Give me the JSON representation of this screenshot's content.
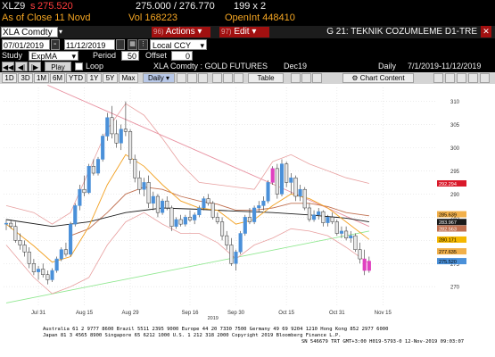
{
  "quote": {
    "ticker": "XLZ9",
    "arrow": "s",
    "last": "275.520",
    "bid_ask": "275.000 / 276.770",
    "size": "199 x 2"
  },
  "row2": {
    "as_of": "As of Close 11 Novd",
    "volume": "Vol  168223",
    "open_interest": "OpenInt  448410"
  },
  "security_bar": {
    "security": "XLA Comdty",
    "actions_num": "96)",
    "actions_label": "Actions",
    "edit_num": "97)",
    "edit_label": "Edit",
    "title": "G 21: TEKNIK COZUMLEME D1-TRE",
    "close_glyph": "✕"
  },
  "dates": {
    "start": "07/01/2019",
    "separator": "-",
    "end": "11/12/2019",
    "currency": "Local CCY"
  },
  "study": {
    "label": "Study",
    "value": "ExpMA",
    "period_label": "Period",
    "period_value": "50",
    "offset_label": "Offset",
    "offset_value": "0"
  },
  "play": {
    "play_label": "Play",
    "loop_label": "Loop",
    "chart_title": "XLA Comdty : GOLD FUTURES",
    "contract": "Dec19",
    "frequency": "Daily",
    "range": "7/1/2019-11/12/2019"
  },
  "toolbar": {
    "periods": [
      "1D",
      "3D",
      "1M",
      "6M",
      "YTD",
      "1Y",
      "5Y",
      "Max"
    ],
    "frequency": "Daily",
    "table": "Table",
    "chart_content": "Chart Content"
  },
  "chart_data": {
    "type": "candlestick",
    "title": "",
    "x_tick_labels": [
      "Jul 31",
      "Aug 15",
      "Aug 29",
      "Sep 16",
      "Sep 30",
      "Oct 15",
      "Oct 31",
      "Nov 15"
    ],
    "year_label": "2019",
    "ylim": [
      266,
      313
    ],
    "y_tick_values": [
      270,
      275,
      280,
      285,
      290,
      295,
      300,
      305,
      310
    ],
    "price_labels": [
      {
        "value": 292.294,
        "text": "292.294",
        "color": "#d9192a"
      },
      {
        "value": 285.639,
        "text": "285.639",
        "color": "#f2b04a"
      },
      {
        "value": 283.967,
        "text": "283.967",
        "color": "#1a1a1a"
      },
      {
        "value": 282.563,
        "text": "282.563",
        "color": "#c07050"
      },
      {
        "value": 280.171,
        "text": "280.171",
        "color": "#f5b800"
      },
      {
        "value": 277.635,
        "text": "277.635",
        "color": "#f2b04a"
      },
      {
        "value": 275.52,
        "text": "275.520",
        "color": "#4a90d9"
      }
    ],
    "colors": {
      "up": "#4a90d9",
      "down": "#e8e8e8",
      "extreme": "#e040c0",
      "down_border": "#333333",
      "ma_short": "#f2a020",
      "ma_long": "#1a1a1a",
      "ma_mid": "#c07050",
      "bollinger": "#e8a0a0",
      "trend_down": "#e890a0",
      "trend_up": "#90e890"
    },
    "candles": [
      {
        "x": 0,
        "o": 283.5,
        "h": 284.6,
        "l": 282.2,
        "c": 283.7
      },
      {
        "x": 1,
        "o": 283.7,
        "h": 284.5,
        "l": 282.5,
        "c": 283.0
      },
      {
        "x": 2,
        "o": 283.0,
        "h": 284.0,
        "l": 279.5,
        "c": 280.0
      },
      {
        "x": 3,
        "o": 280.0,
        "h": 281.5,
        "l": 278.0,
        "c": 279.0
      },
      {
        "x": 4,
        "o": 279.0,
        "h": 280.0,
        "l": 276.5,
        "c": 277.5
      },
      {
        "x": 5,
        "o": 277.5,
        "h": 278.5,
        "l": 274.0,
        "c": 275.0
      },
      {
        "x": 6,
        "o": 275.0,
        "h": 276.0,
        "l": 272.5,
        "c": 273.2
      },
      {
        "x": 7,
        "o": 273.2,
        "h": 274.5,
        "l": 271.5,
        "c": 273.8
      },
      {
        "x": 8,
        "o": 273.8,
        "h": 275.0,
        "l": 272.0,
        "c": 272.6
      },
      {
        "x": 9,
        "o": 272.6,
        "h": 273.5,
        "l": 270.5,
        "c": 271.5
      },
      {
        "x": 10,
        "o": 271.5,
        "h": 274.0,
        "l": 271.0,
        "c": 273.5
      },
      {
        "x": 11,
        "o": 273.5,
        "h": 276.5,
        "l": 273.0,
        "c": 276.0
      },
      {
        "x": 12,
        "o": 276.0,
        "h": 278.5,
        "l": 275.5,
        "c": 278.0
      },
      {
        "x": 13,
        "o": 278.0,
        "h": 279.5,
        "l": 276.5,
        "c": 277.0
      },
      {
        "x": 14,
        "o": 277.0,
        "h": 284.0,
        "l": 276.5,
        "c": 283.5
      },
      {
        "x": 15,
        "o": 283.5,
        "h": 288.0,
        "l": 283.0,
        "c": 287.5
      },
      {
        "x": 16,
        "o": 287.5,
        "h": 292.0,
        "l": 286.5,
        "c": 291.0
      },
      {
        "x": 17,
        "o": 291.0,
        "h": 294.0,
        "l": 289.5,
        "c": 290.3
      },
      {
        "x": 18,
        "o": 290.3,
        "h": 296.5,
        "l": 290.0,
        "c": 296.0
      },
      {
        "x": 19,
        "o": 296.0,
        "h": 297.5,
        "l": 294.0,
        "c": 294.5
      },
      {
        "x": 20,
        "o": 294.5,
        "h": 298.0,
        "l": 294.0,
        "c": 297.5
      },
      {
        "x": 21,
        "o": 297.5,
        "h": 303.0,
        "l": 297.0,
        "c": 302.5
      },
      {
        "x": 22,
        "o": 302.5,
        "h": 307.5,
        "l": 301.5,
        "c": 306.5
      },
      {
        "x": 23,
        "o": 306.5,
        "h": 309.0,
        "l": 302.0,
        "c": 303.0
      },
      {
        "x": 24,
        "o": 303.0,
        "h": 306.0,
        "l": 300.0,
        "c": 301.0
      },
      {
        "x": 25,
        "o": 301.0,
        "h": 305.0,
        "l": 299.5,
        "c": 304.0
      },
      {
        "x": 26,
        "o": 304.0,
        "h": 310.0,
        "l": 302.5,
        "c": 303.5
      },
      {
        "x": 27,
        "o": 303.5,
        "h": 304.0,
        "l": 296.5,
        "c": 297.5
      },
      {
        "x": 28,
        "o": 297.5,
        "h": 298.5,
        "l": 292.5,
        "c": 293.5
      },
      {
        "x": 29,
        "o": 293.5,
        "h": 295.0,
        "l": 290.0,
        "c": 291.0
      },
      {
        "x": 30,
        "o": 291.0,
        "h": 293.5,
        "l": 289.5,
        "c": 292.5
      },
      {
        "x": 31,
        "o": 292.5,
        "h": 294.0,
        "l": 287.0,
        "c": 288.0
      },
      {
        "x": 32,
        "o": 288.0,
        "h": 290.5,
        "l": 286.5,
        "c": 289.5
      },
      {
        "x": 33,
        "o": 289.5,
        "h": 290.0,
        "l": 285.0,
        "c": 286.0
      },
      {
        "x": 34,
        "o": 286.0,
        "h": 289.0,
        "l": 285.5,
        "c": 288.5
      },
      {
        "x": 35,
        "o": 288.5,
        "h": 289.5,
        "l": 286.5,
        "c": 287.0
      },
      {
        "x": 36,
        "o": 287.0,
        "h": 287.5,
        "l": 282.0,
        "c": 283.0
      },
      {
        "x": 37,
        "o": 283.0,
        "h": 285.0,
        "l": 282.5,
        "c": 284.5
      },
      {
        "x": 38,
        "o": 284.5,
        "h": 285.5,
        "l": 283.0,
        "c": 283.5
      },
      {
        "x": 39,
        "o": 283.5,
        "h": 285.5,
        "l": 283.0,
        "c": 285.0
      },
      {
        "x": 40,
        "o": 285.0,
        "h": 286.5,
        "l": 284.0,
        "c": 284.4
      },
      {
        "x": 41,
        "o": 284.4,
        "h": 286.0,
        "l": 283.5,
        "c": 285.5
      },
      {
        "x": 42,
        "o": 285.5,
        "h": 287.5,
        "l": 285.0,
        "c": 287.0
      },
      {
        "x": 43,
        "o": 287.0,
        "h": 289.5,
        "l": 286.5,
        "c": 289.0
      },
      {
        "x": 44,
        "o": 289.0,
        "h": 290.0,
        "l": 287.5,
        "c": 288.0
      },
      {
        "x": 45,
        "o": 288.0,
        "h": 288.5,
        "l": 284.5,
        "c": 285.0
      },
      {
        "x": 46,
        "o": 285.0,
        "h": 286.0,
        "l": 283.5,
        "c": 284.0
      },
      {
        "x": 47,
        "o": 284.0,
        "h": 285.0,
        "l": 280.0,
        "c": 281.0
      },
      {
        "x": 48,
        "o": 281.0,
        "h": 282.0,
        "l": 278.0,
        "c": 279.0
      },
      {
        "x": 49,
        "o": 279.0,
        "h": 280.5,
        "l": 274.5,
        "c": 275.0
      },
      {
        "x": 50,
        "o": 275.0,
        "h": 278.0,
        "l": 273.5,
        "c": 277.5
      },
      {
        "x": 51,
        "o": 277.5,
        "h": 282.0,
        "l": 277.0,
        "c": 281.5
      },
      {
        "x": 52,
        "o": 281.5,
        "h": 285.5,
        "l": 281.0,
        "c": 285.0
      },
      {
        "x": 53,
        "o": 285.0,
        "h": 287.0,
        "l": 283.5,
        "c": 284.0
      },
      {
        "x": 54,
        "o": 284.0,
        "h": 287.5,
        "l": 283.5,
        "c": 287.0
      },
      {
        "x": 55,
        "o": 287.0,
        "h": 288.5,
        "l": 286.0,
        "c": 287.5
      },
      {
        "x": 56,
        "o": 287.5,
        "h": 289.5,
        "l": 286.5,
        "c": 288.5
      },
      {
        "x": 57,
        "o": 288.5,
        "h": 293.0,
        "l": 288.0,
        "c": 292.5
      },
      {
        "x": 58,
        "o": 292.5,
        "h": 296.0,
        "l": 292.0,
        "c": 295.5
      },
      {
        "x": 59,
        "o": 295.5,
        "h": 296.5,
        "l": 289.0,
        "c": 290.0
      },
      {
        "x": 60,
        "o": 290.0,
        "h": 297.5,
        "l": 289.5,
        "c": 296.5
      },
      {
        "x": 61,
        "o": 296.5,
        "h": 297.0,
        "l": 291.5,
        "c": 292.5
      },
      {
        "x": 62,
        "o": 292.5,
        "h": 294.5,
        "l": 290.0,
        "c": 293.5
      },
      {
        "x": 63,
        "o": 293.5,
        "h": 294.0,
        "l": 288.5,
        "c": 289.5
      },
      {
        "x": 64,
        "o": 289.5,
        "h": 292.0,
        "l": 288.5,
        "c": 291.0
      },
      {
        "x": 65,
        "o": 291.0,
        "h": 291.5,
        "l": 286.5,
        "c": 287.0
      },
      {
        "x": 66,
        "o": 287.0,
        "h": 288.0,
        "l": 284.0,
        "c": 284.5
      },
      {
        "x": 67,
        "o": 284.5,
        "h": 286.5,
        "l": 284.0,
        "c": 285.5
      },
      {
        "x": 68,
        "o": 285.5,
        "h": 287.0,
        "l": 284.5,
        "c": 286.2
      },
      {
        "x": 69,
        "o": 286.2,
        "h": 286.5,
        "l": 283.0,
        "c": 283.8
      },
      {
        "x": 70,
        "o": 283.8,
        "h": 285.5,
        "l": 283.0,
        "c": 285.0
      },
      {
        "x": 71,
        "o": 285.0,
        "h": 286.0,
        "l": 283.5,
        "c": 284.0
      },
      {
        "x": 72,
        "o": 284.0,
        "h": 284.5,
        "l": 281.0,
        "c": 281.5
      },
      {
        "x": 73,
        "o": 281.5,
        "h": 283.0,
        "l": 280.5,
        "c": 282.0
      },
      {
        "x": 74,
        "o": 282.0,
        "h": 283.0,
        "l": 280.0,
        "c": 280.5
      },
      {
        "x": 75,
        "o": 280.5,
        "h": 282.0,
        "l": 279.5,
        "c": 281.0
      },
      {
        "x": 76,
        "o": 281.0,
        "h": 281.5,
        "l": 277.5,
        "c": 278.0
      },
      {
        "x": 77,
        "o": 278.0,
        "h": 279.5,
        "l": 275.0,
        "c": 276.0
      },
      {
        "x": 78,
        "o": 276.0,
        "h": 278.0,
        "l": 272.5,
        "c": 273.5
      },
      {
        "x": 79,
        "o": 273.5,
        "h": 276.5,
        "l": 273.0,
        "c": 275.52
      }
    ],
    "ma_short": [
      [
        0,
        283.5
      ],
      [
        6,
        278.8
      ],
      [
        10,
        275.3
      ],
      [
        14,
        276.5
      ],
      [
        18,
        283.0
      ],
      [
        22,
        292.0
      ],
      [
        26,
        298.5
      ],
      [
        30,
        296.0
      ],
      [
        34,
        292.0
      ],
      [
        38,
        288.5
      ],
      [
        42,
        287.0
      ],
      [
        46,
        286.5
      ],
      [
        50,
        283.5
      ],
      [
        54,
        284.5
      ],
      [
        58,
        287.5
      ],
      [
        62,
        290.0
      ],
      [
        66,
        289.0
      ],
      [
        70,
        287.0
      ],
      [
        74,
        284.0
      ],
      [
        79,
        280.2
      ]
    ],
    "ma_mid": [
      [
        14,
        281.0
      ],
      [
        18,
        282.5
      ],
      [
        22,
        286.0
      ],
      [
        26,
        290.0
      ],
      [
        30,
        291.5
      ],
      [
        34,
        291.0
      ],
      [
        38,
        289.5
      ],
      [
        42,
        288.5
      ],
      [
        46,
        287.8
      ],
      [
        50,
        286.5
      ],
      [
        54,
        286.5
      ],
      [
        58,
        287.0
      ],
      [
        62,
        288.0
      ],
      [
        66,
        288.0
      ],
      [
        70,
        287.3
      ],
      [
        74,
        286.0
      ],
      [
        79,
        285.3
      ]
    ],
    "ma_long": [
      [
        0,
        284.5
      ],
      [
        10,
        283.0
      ],
      [
        18,
        284.0
      ],
      [
        26,
        286.0
      ],
      [
        34,
        287.0
      ],
      [
        42,
        286.7
      ],
      [
        50,
        286.3
      ],
      [
        58,
        286.0
      ],
      [
        66,
        285.5
      ],
      [
        74,
        284.8
      ],
      [
        79,
        284.0
      ]
    ],
    "bb_upper": [
      [
        0,
        287.5
      ],
      [
        6,
        286.0
      ],
      [
        10,
        283.5
      ],
      [
        14,
        286.0
      ],
      [
        18,
        295.0
      ],
      [
        22,
        304.0
      ],
      [
        26,
        309.5
      ],
      [
        30,
        307.0
      ],
      [
        34,
        302.0
      ],
      [
        38,
        296.5
      ],
      [
        42,
        292.5
      ],
      [
        46,
        292.0
      ],
      [
        50,
        291.5
      ],
      [
        54,
        291.0
      ],
      [
        58,
        297.0
      ],
      [
        62,
        298.5
      ],
      [
        66,
        296.5
      ],
      [
        70,
        295.0
      ],
      [
        74,
        293.5
      ],
      [
        79,
        292.3
      ]
    ],
    "bb_lower": [
      [
        0,
        279.0
      ],
      [
        6,
        272.0
      ],
      [
        10,
        268.5
      ],
      [
        14,
        270.0
      ],
      [
        18,
        272.0
      ],
      [
        22,
        279.0
      ],
      [
        26,
        284.0
      ],
      [
        30,
        286.0
      ],
      [
        34,
        283.5
      ],
      [
        38,
        281.5
      ],
      [
        42,
        281.5
      ],
      [
        46,
        279.5
      ],
      [
        50,
        276.0
      ],
      [
        54,
        279.0
      ],
      [
        58,
        280.5
      ],
      [
        62,
        282.5
      ],
      [
        66,
        282.0
      ],
      [
        70,
        281.0
      ],
      [
        74,
        278.5
      ],
      [
        79,
        275.0
      ]
    ],
    "trend_down": [
      [
        9,
        313.5
      ],
      [
        79,
        283.0
      ]
    ],
    "trend_up": [
      [
        0,
        266.5
      ],
      [
        79,
        282.0
      ]
    ]
  },
  "footer": {
    "line1": "Australia 61 2 9777 8600 Brazil 5511 2395 9000 Europe 44 20 7330 7500 Germany 49 69 9204 1210 Hong Kong 852 2977 6000",
    "line2": "Japan 81 3 4565 8900         Singapore 65 6212 1000         U.S. 1 212 318 2000         Copyright 2019 Bloomberg Finance L.P.",
    "line3": "SN 546679 TRT  GMT+3:00 H019-5793-0 12-Nov-2019 09:03:07"
  }
}
